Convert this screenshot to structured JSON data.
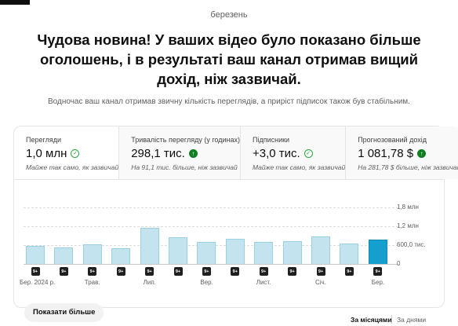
{
  "period": "березень",
  "headline": "Чудова новина! У ваших відео було показано більше оголошень, і в результаті ваш канал отримав вищий дохід, ніж зазвичай.",
  "subline": "Водночас ваш канал отримав звичну кількість переглядів, а приріст підписок також був стабільним.",
  "metrics": [
    {
      "label": "Перегляди",
      "value": "1,0 млн",
      "icon": "check-circle-icon",
      "note": "Майже так само, як зазвичай"
    },
    {
      "label": "Тривалість перегляду (у годинах)",
      "value": "298,1 тис.",
      "icon": "arrow-up-icon",
      "note": "На 91,1 тис. більше, ніж зазвичай"
    },
    {
      "label": "Підписники",
      "value": "+3,0 тис.",
      "icon": "check-circle-icon",
      "note": "Майже так само, як зазвичай"
    },
    {
      "label": "Прогнозований дохід",
      "value": "1 081,78 $",
      "icon": "arrow-up-icon",
      "note": "На 281,78 $ більше, ніж зазвичай"
    }
  ],
  "chart_data": {
    "type": "bar",
    "y_ticks": [
      "1,8 млн",
      "1,2 млн",
      "600,0 тис.",
      "0"
    ],
    "ylim": [
      0,
      1800000
    ],
    "values": [
      580000,
      520000,
      630000,
      490000,
      1160000,
      840000,
      700000,
      810000,
      690000,
      720000,
      880000,
      660000,
      780000
    ],
    "highlighted_index": 12,
    "badges": [
      "9+",
      "9+",
      "9+",
      "9+",
      "9+",
      "9+",
      "9+",
      "9+",
      "9+",
      "9+",
      "9+",
      "9+",
      "9+"
    ],
    "x_labels": [
      {
        "index": 0,
        "text": "Бер. 2024 р."
      },
      {
        "index": 2,
        "text": "Трав."
      },
      {
        "index": 4,
        "text": "Лип."
      },
      {
        "index": 6,
        "text": "Вер."
      },
      {
        "index": 8,
        "text": "Лист."
      },
      {
        "index": 10,
        "text": "Січ."
      },
      {
        "index": 12,
        "text": "Бер."
      }
    ],
    "colors": {
      "bar": "#c3e4ef",
      "bar_highlight": "#159fce"
    }
  },
  "show_more_label": "Показати більше",
  "view_toggle": {
    "months_label": "За місяцями",
    "days_label": "За днями"
  },
  "colors": {
    "positive": "#2ba640",
    "up_arrow_bg": "#0f7d22"
  }
}
